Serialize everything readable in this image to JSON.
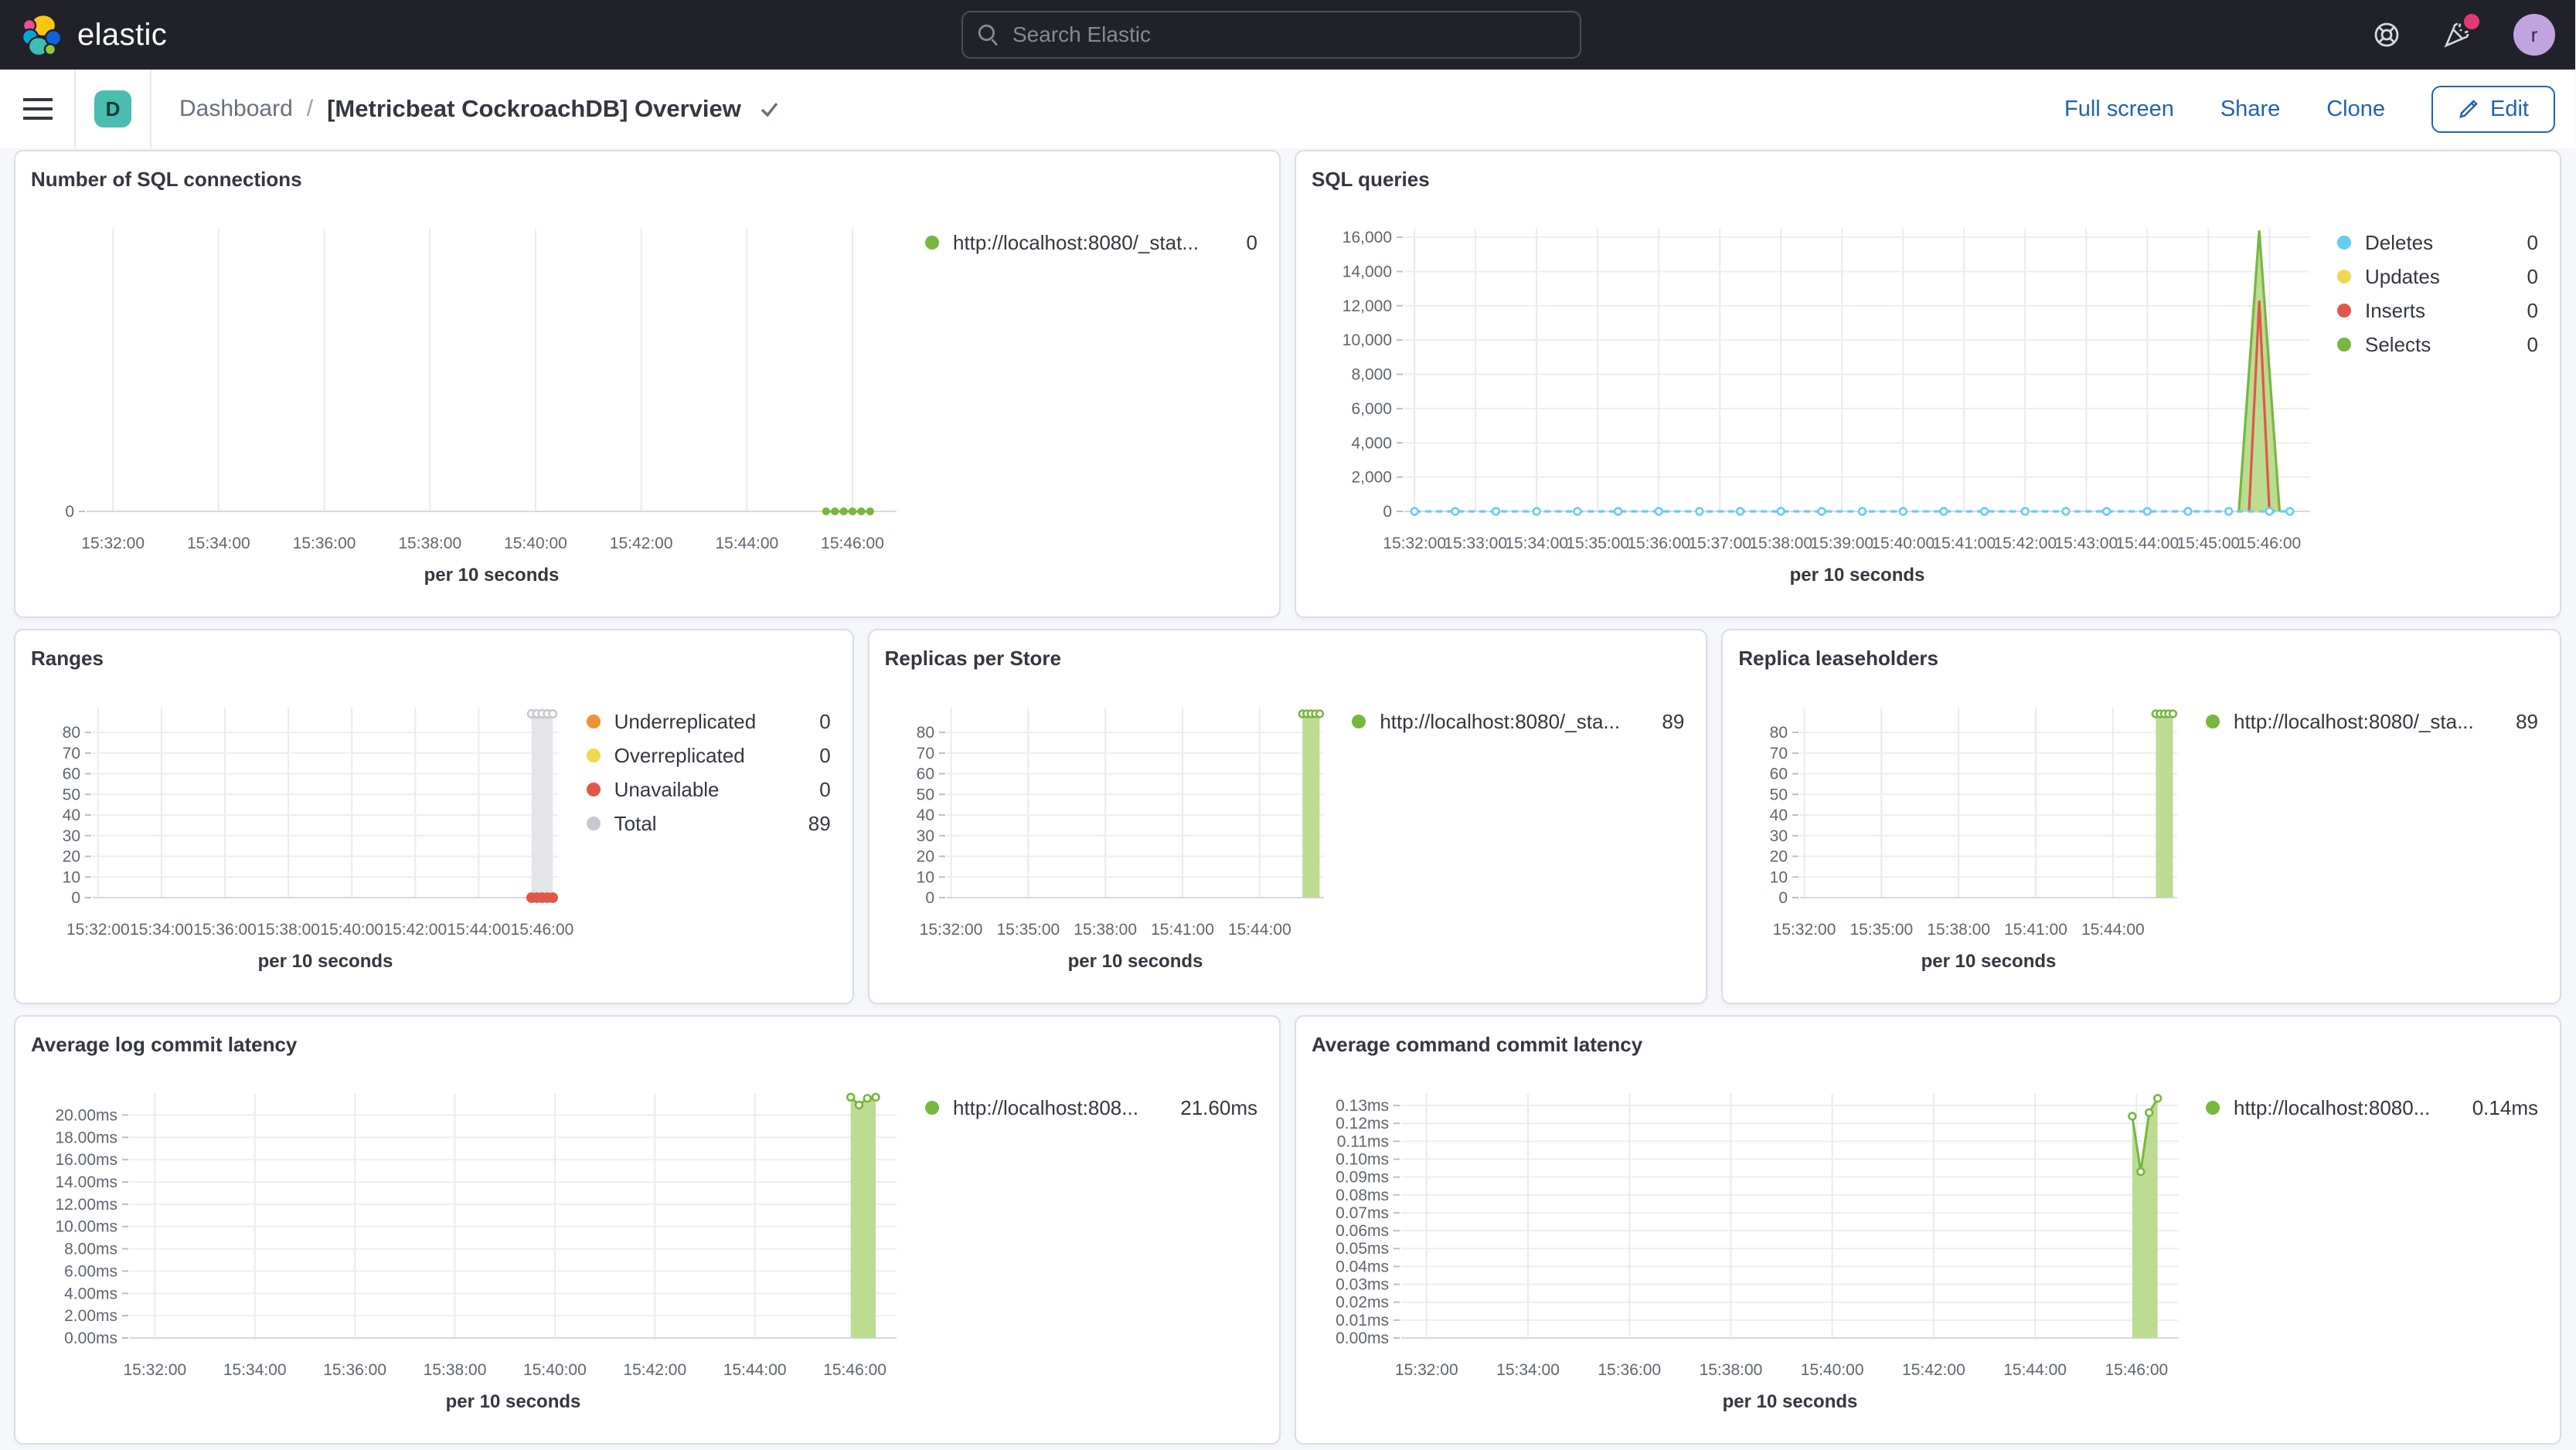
{
  "theme": {
    "header_bg": "#212229",
    "link_blue": "#2063ad",
    "accent_pink": "#e23a76",
    "badge_teal": "#4abcb1",
    "avatar_purple": "#c2a3e0",
    "green": "#77b73e",
    "blue": "#68ccee",
    "yellow": "#f1d850",
    "red": "#e2564a",
    "orange": "#ed9331",
    "grey": "#c6c9ce"
  },
  "header": {
    "brand": "elastic",
    "search_placeholder": "Search Elastic",
    "avatar_initial": "r",
    "icons": [
      "help-icon",
      "whats-new-icon",
      "user-avatar"
    ]
  },
  "toolbar": {
    "badge_initial": "D",
    "breadcrumb_root": "Dashboard",
    "breadcrumb_sep": "/",
    "title": "[Metricbeat CockroachDB] Overview",
    "actions": {
      "full_screen": "Full screen",
      "share": "Share",
      "clone": "Clone",
      "edit": "Edit"
    }
  },
  "panels": [
    {
      "title": "Number of SQL connections",
      "legend": [
        {
          "color": "#77b73e",
          "label": "http://localhost:8080/_stat...",
          "value": "0"
        }
      ]
    },
    {
      "title": "SQL queries",
      "legend": [
        {
          "color": "#68ccee",
          "label": "Deletes",
          "value": "0"
        },
        {
          "color": "#f1d850",
          "label": "Updates",
          "value": "0"
        },
        {
          "color": "#e2564a",
          "label": "Inserts",
          "value": "0"
        },
        {
          "color": "#77b73e",
          "label": "Selects",
          "value": "0"
        }
      ]
    },
    {
      "title": "Ranges",
      "legend": [
        {
          "color": "#ed9331",
          "label": "Underreplicated",
          "value": "0"
        },
        {
          "color": "#f1d850",
          "label": "Overreplicated",
          "value": "0"
        },
        {
          "color": "#e2564a",
          "label": "Unavailable",
          "value": "0"
        },
        {
          "color": "#c6c9ce",
          "label": "Total",
          "value": "89"
        }
      ]
    },
    {
      "title": "Replicas per Store",
      "legend": [
        {
          "color": "#77b73e",
          "label": "http://localhost:8080/_sta...",
          "value": "89"
        }
      ]
    },
    {
      "title": "Replica leaseholders",
      "legend": [
        {
          "color": "#77b73e",
          "label": "http://localhost:8080/_sta...",
          "value": "89"
        }
      ]
    },
    {
      "title": "Average log commit latency",
      "legend": [
        {
          "color": "#77b73e",
          "label": "http://localhost:808...",
          "value": "21.60ms"
        }
      ]
    },
    {
      "title": "Average command commit latency",
      "legend": [
        {
          "color": "#77b73e",
          "label": "http://localhost:8080...",
          "value": "0.14ms"
        }
      ]
    }
  ],
  "chart_data": [
    {
      "id": "sql_connections",
      "type": "line",
      "title": "Number of SQL connections",
      "xlabel": "per 10 seconds",
      "legend_position": "right",
      "grid": true,
      "pad_left": 36,
      "x_domain": [
        "15:31:30",
        "15:46:50"
      ],
      "x_ticks": [
        "15:32:00",
        "15:34:00",
        "15:36:00",
        "15:38:00",
        "15:40:00",
        "15:42:00",
        "15:44:00",
        "15:46:00"
      ],
      "y_domain": [
        0,
        1
      ],
      "y_ticks": [
        {
          "v": 0,
          "label": "0"
        }
      ],
      "series": [
        {
          "name": "http://localhost:8080/_stat...",
          "color": "#77b73e",
          "width": 1.5,
          "markers": true,
          "solid": true,
          "r": 1.9,
          "points": [
            [
              "15:45:30",
              0
            ],
            [
              "15:45:40",
              0
            ],
            [
              "15:45:50",
              0
            ],
            [
              "15:46:00",
              0
            ],
            [
              "15:46:10",
              0
            ],
            [
              "15:46:20",
              0
            ]
          ]
        }
      ]
    },
    {
      "id": "sql_queries",
      "type": "area",
      "title": "SQL queries",
      "xlabel": "per 10 seconds",
      "legend_position": "right",
      "grid": true,
      "pad_left": 60,
      "x_domain": [
        "15:31:50",
        "15:46:40"
      ],
      "x_ticks": [
        "15:32:00",
        "15:33:00",
        "15:34:00",
        "15:35:00",
        "15:36:00",
        "15:37:00",
        "15:38:00",
        "15:39:00",
        "15:40:00",
        "15:41:00",
        "15:42:00",
        "15:43:00",
        "15:44:00",
        "15:45:00",
        "15:46:00"
      ],
      "y_domain": [
        0,
        16500
      ],
      "y_ticks": [
        {
          "v": 0,
          "label": "0"
        },
        {
          "v": 2000,
          "label": "2,000"
        },
        {
          "v": 4000,
          "label": "4,000"
        },
        {
          "v": 6000,
          "label": "6,000"
        },
        {
          "v": 8000,
          "label": "8,000"
        },
        {
          "v": 10000,
          "label": "10,000"
        },
        {
          "v": 12000,
          "label": "12,000"
        },
        {
          "v": 14000,
          "label": "14,000"
        },
        {
          "v": 16000,
          "label": "16,000"
        }
      ],
      "series": [
        {
          "name": "Selects",
          "color": "#77b73e",
          "fill": "#bcdc92",
          "area": true,
          "width": 1.6,
          "points": [
            [
              "15:45:30",
              0
            ],
            [
              "15:45:50",
              16400
            ],
            [
              "15:46:10",
              0
            ]
          ]
        },
        {
          "name": "Inserts",
          "color": "#e2564a",
          "width": 1.6,
          "points": [
            [
              "15:45:40",
              0
            ],
            [
              "15:45:50",
              12300
            ],
            [
              "15:46:00",
              0
            ]
          ]
        },
        {
          "name": "Updates",
          "color": "#f1d850",
          "width": 1.4,
          "points": [
            [
              "15:45:45",
              0
            ],
            [
              "15:45:55",
              0
            ]
          ]
        },
        {
          "name": "Deletes",
          "color": "#68ccee",
          "dash": "4,3",
          "width": 1.6,
          "markers": true,
          "r": 2.2,
          "points": [
            [
              "15:32:00",
              0
            ],
            [
              "15:32:40",
              0
            ],
            [
              "15:33:20",
              0
            ],
            [
              "15:34:00",
              0
            ],
            [
              "15:34:40",
              0
            ],
            [
              "15:35:20",
              0
            ],
            [
              "15:36:00",
              0
            ],
            [
              "15:36:40",
              0
            ],
            [
              "15:37:20",
              0
            ],
            [
              "15:38:00",
              0
            ],
            [
              "15:38:40",
              0
            ],
            [
              "15:39:20",
              0
            ],
            [
              "15:40:00",
              0
            ],
            [
              "15:40:40",
              0
            ],
            [
              "15:41:20",
              0
            ],
            [
              "15:42:00",
              0
            ],
            [
              "15:42:40",
              0
            ],
            [
              "15:43:20",
              0
            ],
            [
              "15:44:00",
              0
            ],
            [
              "15:44:40",
              0
            ],
            [
              "15:45:20",
              0
            ],
            [
              "15:46:00",
              0
            ],
            [
              "15:46:20",
              0
            ]
          ]
        }
      ]
    },
    {
      "id": "ranges",
      "type": "area",
      "title": "Ranges",
      "xlabel": "per 10 seconds",
      "legend_position": "right",
      "grid": true,
      "pad_left": 40,
      "x_domain": [
        "15:31:50",
        "15:46:30"
      ],
      "x_ticks": [
        "15:32:00",
        "15:34:00",
        "15:36:00",
        "15:38:00",
        "15:40:00",
        "15:42:00",
        "15:44:00",
        "15:46:00"
      ],
      "y_domain": [
        0,
        92
      ],
      "y_ticks": [
        {
          "v": 0,
          "label": "0"
        },
        {
          "v": 10,
          "label": "10"
        },
        {
          "v": 20,
          "label": "20"
        },
        {
          "v": 30,
          "label": "30"
        },
        {
          "v": 40,
          "label": "40"
        },
        {
          "v": 50,
          "label": "50"
        },
        {
          "v": 60,
          "label": "60"
        },
        {
          "v": 70,
          "label": "70"
        },
        {
          "v": 80,
          "label": "80"
        }
      ],
      "series": [
        {
          "name": "Total",
          "color": "#c6c9ce",
          "fill": "#e4e5e8",
          "area": true,
          "markers": true,
          "r": 2.4,
          "width": 1.3,
          "points": [
            [
              "15:45:40",
              89
            ],
            [
              "15:45:50",
              89
            ],
            [
              "15:46:00",
              89
            ],
            [
              "15:46:10",
              89
            ],
            [
              "15:46:20",
              89
            ]
          ]
        },
        {
          "name": "Unavailable",
          "color": "#e2564a",
          "markers": true,
          "solid": true,
          "r": 2.8,
          "width": 1.5,
          "points": [
            [
              "15:45:40",
              0
            ],
            [
              "15:45:50",
              0
            ],
            [
              "15:46:00",
              0
            ],
            [
              "15:46:10",
              0
            ],
            [
              "15:46:20",
              0
            ]
          ]
        }
      ]
    },
    {
      "id": "replicas_store",
      "type": "area",
      "title": "Replicas per Store",
      "xlabel": "per 10 seconds",
      "legend_position": "right",
      "grid": true,
      "pad_left": 40,
      "x_domain": [
        "15:31:50",
        "15:46:30"
      ],
      "x_ticks": [
        "15:32:00",
        "15:35:00",
        "15:38:00",
        "15:41:00",
        "15:44:00"
      ],
      "y_domain": [
        0,
        92
      ],
      "y_ticks": [
        {
          "v": 0,
          "label": "0"
        },
        {
          "v": 10,
          "label": "10"
        },
        {
          "v": 20,
          "label": "20"
        },
        {
          "v": 30,
          "label": "30"
        },
        {
          "v": 40,
          "label": "40"
        },
        {
          "v": 50,
          "label": "50"
        },
        {
          "v": 60,
          "label": "60"
        },
        {
          "v": 70,
          "label": "70"
        },
        {
          "v": 80,
          "label": "80"
        }
      ],
      "series": [
        {
          "name": "http://localhost:8080/_sta...",
          "color": "#77b73e",
          "fill": "#bcdc92",
          "area": true,
          "markers": true,
          "r": 2.2,
          "width": 1.4,
          "points": [
            [
              "15:45:40",
              89
            ],
            [
              "15:45:50",
              89
            ],
            [
              "15:46:00",
              89
            ],
            [
              "15:46:10",
              89
            ],
            [
              "15:46:20",
              89
            ]
          ]
        }
      ]
    },
    {
      "id": "replica_leaseholders",
      "type": "area",
      "title": "Replica leaseholders",
      "xlabel": "per 10 seconds",
      "legend_position": "right",
      "grid": true,
      "pad_left": 40,
      "x_domain": [
        "15:31:50",
        "15:46:30"
      ],
      "x_ticks": [
        "15:32:00",
        "15:35:00",
        "15:38:00",
        "15:41:00",
        "15:44:00"
      ],
      "y_domain": [
        0,
        92
      ],
      "y_ticks": [
        {
          "v": 0,
          "label": "0"
        },
        {
          "v": 10,
          "label": "10"
        },
        {
          "v": 20,
          "label": "20"
        },
        {
          "v": 30,
          "label": "30"
        },
        {
          "v": 40,
          "label": "40"
        },
        {
          "v": 50,
          "label": "50"
        },
        {
          "v": 60,
          "label": "60"
        },
        {
          "v": 70,
          "label": "70"
        },
        {
          "v": 80,
          "label": "80"
        }
      ],
      "series": [
        {
          "name": "http://localhost:8080/_sta...",
          "color": "#77b73e",
          "fill": "#bcdc92",
          "area": true,
          "markers": true,
          "r": 2.2,
          "width": 1.4,
          "points": [
            [
              "15:45:40",
              89
            ],
            [
              "15:45:50",
              89
            ],
            [
              "15:46:00",
              89
            ],
            [
              "15:46:10",
              89
            ],
            [
              "15:46:20",
              89
            ]
          ]
        }
      ]
    },
    {
      "id": "avg_log_commit",
      "type": "area",
      "title": "Average log commit latency",
      "xlabel": "per 10 seconds",
      "legend_position": "right",
      "grid": true,
      "pad_left": 64,
      "x_domain": [
        "15:31:30",
        "15:46:50"
      ],
      "x_ticks": [
        "15:32:00",
        "15:34:00",
        "15:36:00",
        "15:38:00",
        "15:40:00",
        "15:42:00",
        "15:44:00",
        "15:46:00"
      ],
      "y_domain": [
        0,
        21.9
      ],
      "y_ticks": [
        {
          "v": 0,
          "label": "0.00ms"
        },
        {
          "v": 2,
          "label": "2.00ms"
        },
        {
          "v": 4,
          "label": "4.00ms"
        },
        {
          "v": 6,
          "label": "6.00ms"
        },
        {
          "v": 8,
          "label": "8.00ms"
        },
        {
          "v": 10,
          "label": "10.00ms"
        },
        {
          "v": 12,
          "label": "12.00ms"
        },
        {
          "v": 14,
          "label": "14.00ms"
        },
        {
          "v": 16,
          "label": "16.00ms"
        },
        {
          "v": 18,
          "label": "18.00ms"
        },
        {
          "v": 20,
          "label": "20.00ms"
        }
      ],
      "series": [
        {
          "name": "http://localhost:808...",
          "color": "#77b73e",
          "fill": "#bcdc92",
          "area": true,
          "markers": true,
          "r": 2.2,
          "width": 1.5,
          "points": [
            [
              "15:45:55",
              21.6
            ],
            [
              "15:46:05",
              20.9
            ],
            [
              "15:46:15",
              21.5
            ],
            [
              "15:46:25",
              21.6
            ]
          ]
        }
      ]
    },
    {
      "id": "avg_cmd_commit",
      "type": "area",
      "title": "Average command commit latency",
      "xlabel": "per 10 seconds",
      "legend_position": "right",
      "grid": true,
      "pad_left": 58,
      "x_domain": [
        "15:31:30",
        "15:46:50"
      ],
      "x_ticks": [
        "15:32:00",
        "15:34:00",
        "15:36:00",
        "15:38:00",
        "15:40:00",
        "15:42:00",
        "15:44:00",
        "15:46:00"
      ],
      "y_domain": [
        0,
        0.1365
      ],
      "y_ticks": [
        {
          "v": 0,
          "label": "0.00ms"
        },
        {
          "v": 0.01,
          "label": "0.01ms"
        },
        {
          "v": 0.02,
          "label": "0.02ms"
        },
        {
          "v": 0.03,
          "label": "0.03ms"
        },
        {
          "v": 0.04,
          "label": "0.04ms"
        },
        {
          "v": 0.05,
          "label": "0.05ms"
        },
        {
          "v": 0.06,
          "label": "0.06ms"
        },
        {
          "v": 0.07,
          "label": "0.07ms"
        },
        {
          "v": 0.08,
          "label": "0.08ms"
        },
        {
          "v": 0.09,
          "label": "0.09ms"
        },
        {
          "v": 0.1,
          "label": "0.10ms"
        },
        {
          "v": 0.11,
          "label": "0.11ms"
        },
        {
          "v": 0.12,
          "label": "0.12ms"
        },
        {
          "v": 0.13,
          "label": "0.13ms"
        }
      ],
      "series": [
        {
          "name": "http://localhost:8080...",
          "color": "#77b73e",
          "fill": "#bcdc92",
          "area": true,
          "markers": true,
          "r": 2.2,
          "width": 1.5,
          "points": [
            [
              "15:45:55",
              0.124
            ],
            [
              "15:46:05",
              0.093
            ],
            [
              "15:46:15",
              0.126
            ],
            [
              "15:46:25",
              0.134
            ]
          ]
        }
      ]
    }
  ]
}
